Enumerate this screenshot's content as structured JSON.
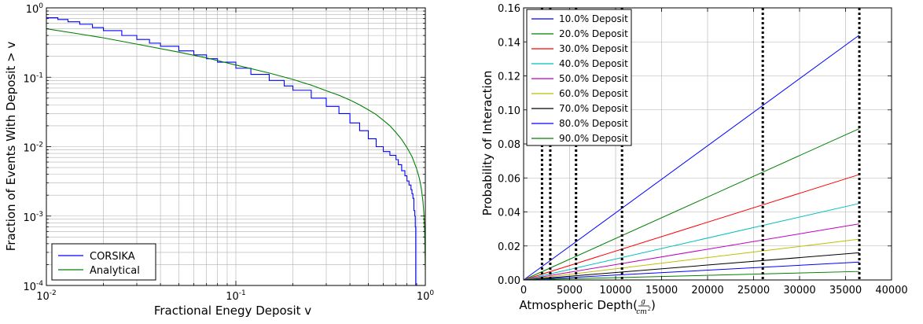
{
  "chart_data": [
    {
      "type": "line",
      "xlabel": "Fractional Enegy Deposit v",
      "ylabel": "Fraction of Events With Deposit > v",
      "xscale": "log",
      "yscale": "log",
      "xlim": [
        0.01,
        1
      ],
      "ylim": [
        0.0001,
        1
      ],
      "grid": true,
      "legend_position": "bottom-left",
      "x_ticks": [
        {
          "value": 0.01,
          "base": "10",
          "exp": "-2"
        },
        {
          "value": 0.1,
          "base": "10",
          "exp": "-1"
        },
        {
          "value": 1,
          "base": "10",
          "exp": "0"
        }
      ],
      "y_ticks": [
        {
          "value": 0.0001,
          "base": "10",
          "exp": "-4"
        },
        {
          "value": 0.001,
          "base": "10",
          "exp": "-3"
        },
        {
          "value": 0.01,
          "base": "10",
          "exp": "-2"
        },
        {
          "value": 0.1,
          "base": "10",
          "exp": "-1"
        },
        {
          "value": 1,
          "base": "10",
          "exp": "0"
        }
      ],
      "series": [
        {
          "name": "CORSIKA",
          "color": "#0000ff",
          "x": [
            0.01,
            0.0115,
            0.013,
            0.015,
            0.0175,
            0.02,
            0.025,
            0.03,
            0.035,
            0.04,
            0.05,
            0.06,
            0.07,
            0.08,
            0.1,
            0.12,
            0.15,
            0.18,
            0.2,
            0.25,
            0.3,
            0.35,
            0.4,
            0.45,
            0.5,
            0.55,
            0.6,
            0.65,
            0.7,
            0.72,
            0.75,
            0.78,
            0.8,
            0.82,
            0.84,
            0.85,
            0.86,
            0.87,
            0.88,
            0.885,
            0.89
          ],
          "y": [
            0.72,
            0.68,
            0.63,
            0.58,
            0.52,
            0.47,
            0.4,
            0.35,
            0.31,
            0.28,
            0.24,
            0.21,
            0.185,
            0.165,
            0.135,
            0.11,
            0.09,
            0.075,
            0.065,
            0.05,
            0.038,
            0.03,
            0.022,
            0.017,
            0.013,
            0.01,
            0.0085,
            0.0075,
            0.0065,
            0.0055,
            0.0045,
            0.0038,
            0.0032,
            0.0028,
            0.0024,
            0.0021,
            0.0018,
            0.0012,
            0.001,
            0.0007,
            0.0001
          ]
        },
        {
          "name": "Analytical",
          "color": "#008000",
          "x": [
            0.01,
            0.015,
            0.02,
            0.03,
            0.05,
            0.07,
            0.1,
            0.15,
            0.2,
            0.25,
            0.3,
            0.35,
            0.4,
            0.45,
            0.5,
            0.55,
            0.6,
            0.65,
            0.7,
            0.75,
            0.8,
            0.85,
            0.9,
            0.93,
            0.95,
            0.97,
            0.98,
            0.99,
            0.995,
            1.0
          ],
          "y": [
            0.5,
            0.42,
            0.37,
            0.3,
            0.23,
            0.19,
            0.15,
            0.115,
            0.093,
            0.077,
            0.064,
            0.055,
            0.047,
            0.04,
            0.034,
            0.029,
            0.024,
            0.02,
            0.016,
            0.0127,
            0.0097,
            0.0072,
            0.0048,
            0.0035,
            0.0026,
            0.0017,
            0.0012,
            0.00068,
            0.0004,
            0.00017
          ]
        }
      ]
    },
    {
      "type": "line",
      "xlabel_text": "Atmospheric Depth(",
      "xlabel_frac_num": "g",
      "xlabel_frac_den": "cm",
      "xlabel_frac_den_exp": "2",
      "xlabel_close": ")",
      "ylabel": "Probability of Interaction",
      "xlim": [
        0,
        40000
      ],
      "ylim": [
        0,
        0.16
      ],
      "grid": true,
      "legend_position": "top-left",
      "x_ticks": [
        "0",
        "5000",
        "10000",
        "15000",
        "20000",
        "25000",
        "30000",
        "35000",
        "40000"
      ],
      "y_ticks": [
        "0.00",
        "0.02",
        "0.04",
        "0.06",
        "0.08",
        "0.10",
        "0.12",
        "0.14",
        "0.16"
      ],
      "vlines": [
        2000,
        2900,
        5700,
        10700,
        26000,
        36500
      ],
      "series": [
        {
          "name": "10.0% Deposit",
          "color": "#0000ff",
          "x": [
            0,
            36500
          ],
          "y": [
            0,
            0.144
          ]
        },
        {
          "name": "20.0% Deposit",
          "color": "#008000",
          "x": [
            0,
            36500
          ],
          "y": [
            0,
            0.089
          ]
        },
        {
          "name": "30.0% Deposit",
          "color": "#ff0000",
          "x": [
            0,
            36500
          ],
          "y": [
            0,
            0.062
          ]
        },
        {
          "name": "40.0% Deposit",
          "color": "#00bfbf",
          "x": [
            0,
            36500
          ],
          "y": [
            0,
            0.045
          ]
        },
        {
          "name": "50.0% Deposit",
          "color": "#bf00bf",
          "x": [
            0,
            36500
          ],
          "y": [
            0,
            0.033
          ]
        },
        {
          "name": "60.0% Deposit",
          "color": "#bfbf00",
          "x": [
            0,
            36500
          ],
          "y": [
            0,
            0.024
          ]
        },
        {
          "name": "70.0% Deposit",
          "color": "#000000",
          "x": [
            0,
            36500
          ],
          "y": [
            0,
            0.016
          ]
        },
        {
          "name": "80.0% Deposit",
          "color": "#0000ff",
          "x": [
            0,
            36500
          ],
          "y": [
            0,
            0.0105
          ]
        },
        {
          "name": "90.0% Deposit",
          "color": "#008000",
          "x": [
            0,
            36500
          ],
          "y": [
            0,
            0.005
          ]
        }
      ]
    }
  ]
}
